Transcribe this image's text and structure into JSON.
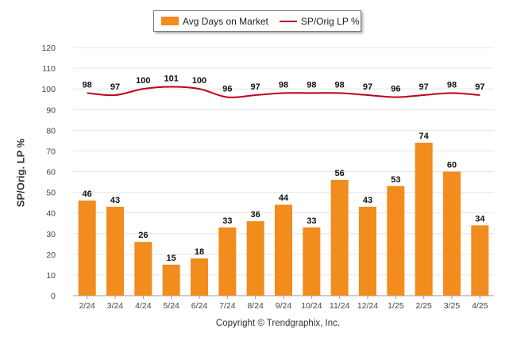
{
  "legend": {
    "bar_label": "Avg Days on Market",
    "line_label": "SP/Orig LP %"
  },
  "copyright": "Copyright © Trendgraphix, Inc.",
  "colors": {
    "bar": "#f28c1c",
    "line": "#c0001a",
    "grid": "#e4e4e4",
    "axis": "#999999"
  },
  "chart_data": {
    "type": "bar",
    "title": "",
    "xlabel": "",
    "ylabel": "SP/Orig. LP %",
    "ylim": [
      0,
      120
    ],
    "yticks": [
      0,
      10,
      20,
      30,
      40,
      50,
      60,
      70,
      80,
      90,
      100,
      110,
      120
    ],
    "grid": true,
    "legend_position": "top-center",
    "categories": [
      "2/24",
      "3/24",
      "4/24",
      "5/24",
      "6/24",
      "7/24",
      "8/24",
      "9/24",
      "10/24",
      "11/24",
      "12/24",
      "1/25",
      "2/25",
      "3/25",
      "4/25"
    ],
    "series": [
      {
        "name": "Avg Days on Market",
        "type": "bar",
        "values": [
          46,
          43,
          26,
          15,
          18,
          33,
          36,
          44,
          33,
          56,
          43,
          53,
          74,
          60,
          34
        ]
      },
      {
        "name": "SP/Orig LP %",
        "type": "line",
        "values": [
          98,
          97,
          100,
          101,
          100,
          96,
          97,
          98,
          98,
          98,
          97,
          96,
          97,
          98,
          97
        ]
      }
    ]
  }
}
